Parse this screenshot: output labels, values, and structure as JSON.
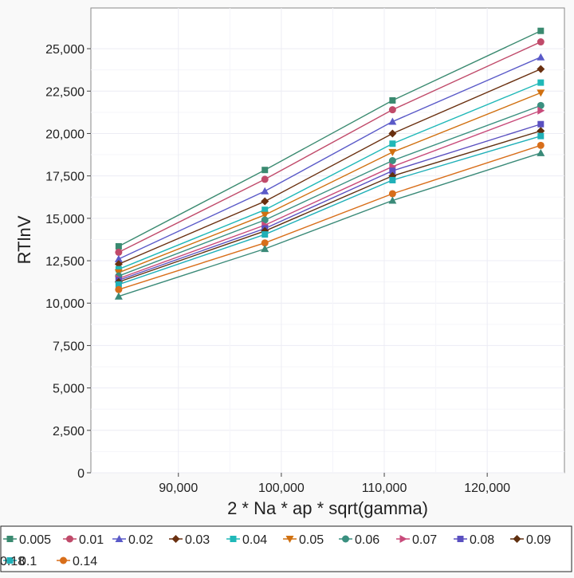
{
  "chart_data": {
    "type": "line",
    "xlabel": "2 * Na * ap * sqrt(gamma)",
    "ylabel": "RTlnV",
    "xlim": [
      81500,
      127500
    ],
    "ylim": [
      0,
      27400
    ],
    "x_ticks": [
      90000,
      100000,
      110000,
      120000
    ],
    "x_tick_labels": [
      "90,000",
      "100,000",
      "110,000",
      "120,000"
    ],
    "y_ticks": [
      0,
      2500,
      5000,
      7500,
      10000,
      12500,
      15000,
      17500,
      20000,
      22500,
      25000
    ],
    "y_tick_labels": [
      "0",
      "2,500",
      "5,000",
      "7,500",
      "10,000",
      "12,500",
      "15,000",
      "17,500",
      "20,000",
      "22,500",
      "25,000"
    ],
    "grid": true,
    "legend_position": "bottom",
    "x": [
      84200,
      98400,
      110800,
      125200
    ],
    "series": [
      {
        "name": "0.005",
        "marker": "square",
        "color": "#3a8a70",
        "values": [
          13350,
          17850,
          21950,
          26050
        ]
      },
      {
        "name": "0.01",
        "marker": "circle",
        "color": "#c04a6a",
        "values": [
          13000,
          17300,
          21400,
          25400
        ]
      },
      {
        "name": "0.02",
        "marker": "triangle-up",
        "color": "#5a5ac8",
        "values": [
          12600,
          16600,
          20700,
          24500
        ]
      },
      {
        "name": "0.03",
        "marker": "diamond",
        "color": "#6a3010",
        "values": [
          12300,
          16000,
          20000,
          23800
        ]
      },
      {
        "name": "0.04",
        "marker": "square",
        "color": "#20b8b8",
        "values": [
          12000,
          15500,
          19400,
          23000
        ]
      },
      {
        "name": "0.05",
        "marker": "triangle-down",
        "color": "#d07010",
        "values": [
          11800,
          15200,
          18900,
          22400
        ]
      },
      {
        "name": "0.06",
        "marker": "circle",
        "color": "#3a9080",
        "values": [
          11600,
          14900,
          18400,
          21650
        ]
      },
      {
        "name": "0.07",
        "marker": "triangle-right",
        "color": "#c84a7a",
        "values": [
          11450,
          14600,
          18050,
          21350
        ]
      },
      {
        "name": "0.08",
        "marker": "square",
        "color": "#5a50c0",
        "values": [
          11350,
          14400,
          17800,
          20550
        ]
      },
      {
        "name": "0.09",
        "marker": "diamond",
        "color": "#603010",
        "values": [
          11250,
          14250,
          17500,
          20150
        ]
      },
      {
        "name": "0.1",
        "marker": "square",
        "color": "#20b0b8",
        "values": [
          11100,
          14050,
          17250,
          19850
        ]
      },
      {
        "name": "0.14",
        "marker": "circle",
        "color": "#d86e1a",
        "values": [
          10800,
          13550,
          16450,
          19300
        ]
      },
      {
        "name": "0.18",
        "marker": "triangle-up",
        "color": "#3a8a78",
        "values": [
          10400,
          13200,
          16050,
          18850
        ]
      }
    ]
  }
}
